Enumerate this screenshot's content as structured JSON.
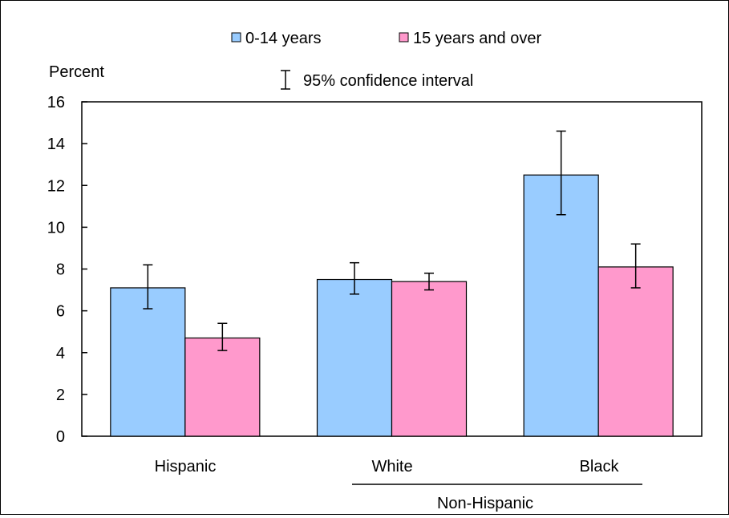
{
  "chart_data": {
    "type": "bar",
    "ylabel": "Percent",
    "ylim": [
      0,
      16
    ],
    "yticks": [
      0,
      2,
      4,
      6,
      8,
      10,
      12,
      14,
      16
    ],
    "categories": [
      "Hispanic",
      "White",
      "Black"
    ],
    "group_label": "Non-Hispanic",
    "series": [
      {
        "name": "0-14 years",
        "color": "#99ccff",
        "values": [
          7.1,
          7.5,
          12.5
        ],
        "ci_low": [
          6.1,
          6.8,
          10.6
        ],
        "ci_high": [
          8.2,
          8.3,
          14.6
        ]
      },
      {
        "name": "15 years and over",
        "color": "#ff99cc",
        "values": [
          4.7,
          7.4,
          8.1
        ],
        "ci_low": [
          4.1,
          7.0,
          7.1
        ],
        "ci_high": [
          5.4,
          7.8,
          9.2
        ]
      }
    ],
    "ci_legend": "95% confidence interval",
    "legend_position": "top-center",
    "grid": false
  }
}
